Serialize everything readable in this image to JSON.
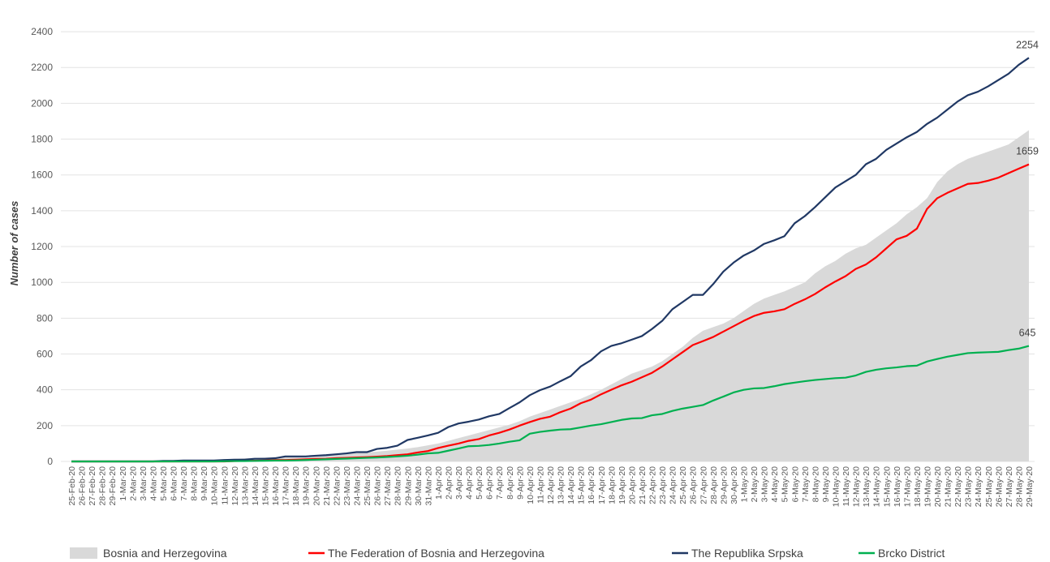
{
  "chart_data": {
    "type": "line",
    "ylabel": "Number of cases",
    "ylim": [
      0,
      2500
    ],
    "yticks": [
      0,
      200,
      400,
      600,
      800,
      1000,
      1200,
      1400,
      1600,
      1800,
      2000,
      2200,
      2400
    ],
    "grid": true,
    "legend": "bottom",
    "categories": [
      "25-Feb-20",
      "26-Feb-20",
      "27-Feb-20",
      "28-Feb-20",
      "29-Feb-20",
      "1-Mar-20",
      "2-Mar-20",
      "3-Mar-20",
      "4-Mar-20",
      "5-Mar-20",
      "6-Mar-20",
      "7-Mar-20",
      "8-Mar-20",
      "9-Mar-20",
      "10-Mar-20",
      "11-Mar-20",
      "12-Mar-20",
      "13-Mar-20",
      "14-Mar-20",
      "15-Mar-20",
      "16-Mar-20",
      "17-Mar-20",
      "18-Mar-20",
      "19-Mar-20",
      "20-Mar-20",
      "21-Mar-20",
      "22-Mar-20",
      "23-Mar-20",
      "24-Mar-20",
      "25-Mar-20",
      "26-Mar-20",
      "27-Mar-20",
      "28-Mar-20",
      "29-Mar-20",
      "30-Mar-20",
      "31-Mar-20",
      "1-Apr-20",
      "2-Apr-20",
      "3-Apr-20",
      "4-Apr-20",
      "5-Apr-20",
      "6-Apr-20",
      "7-Apr-20",
      "8-Apr-20",
      "9-Apr-20",
      "10-Apr-20",
      "11-Apr-20",
      "12-Apr-20",
      "13-Apr-20",
      "14-Apr-20",
      "15-Apr-20",
      "16-Apr-20",
      "17-Apr-20",
      "18-Apr-20",
      "19-Apr-20",
      "20-Apr-20",
      "21-Apr-20",
      "22-Apr-20",
      "23-Apr-20",
      "24-Apr-20",
      "25-Apr-20",
      "26-Apr-20",
      "27-Apr-20",
      "28-Apr-20",
      "29-Apr-20",
      "30-Apr-20",
      "1-May-20",
      "2-May-20",
      "3-May-20",
      "4-May-20",
      "5-May-20",
      "6-May-20",
      "7-May-20",
      "8-May-20",
      "9-May-20",
      "10-May-20",
      "11-May-20",
      "12-May-20",
      "13-May-20",
      "14-May-20",
      "15-May-20",
      "16-May-20",
      "17-May-20",
      "18-May-20",
      "19-May-20",
      "20-May-20",
      "21-May-20",
      "22-May-20",
      "23-May-20",
      "24-May-20",
      "25-May-20",
      "26-May-20",
      "27-May-20",
      "28-May-20",
      "29-May-20"
    ],
    "series": [
      {
        "name": "Bosnia and Herzegovina",
        "kind": "area",
        "color": "#d9d9d9",
        "end_label": false,
        "values": [
          0,
          0,
          0,
          0,
          0,
          0,
          0,
          0,
          0,
          0,
          2,
          3,
          5,
          7,
          9,
          12,
          15,
          18,
          20,
          22,
          24,
          26,
          28,
          30,
          32,
          35,
          38,
          42,
          46,
          50,
          55,
          60,
          66,
          72,
          80,
          90,
          100,
          115,
          130,
          145,
          160,
          175,
          190,
          205,
          225,
          250,
          270,
          290,
          310,
          330,
          350,
          375,
          400,
          430,
          460,
          490,
          510,
          530,
          560,
          600,
          640,
          690,
          730,
          750,
          770,
          800,
          840,
          880,
          910,
          930,
          950,
          975,
          1000,
          1050,
          1090,
          1120,
          1160,
          1190,
          1210,
          1250,
          1290,
          1330,
          1380,
          1420,
          1470,
          1560,
          1620,
          1660,
          1690,
          1710,
          1730,
          1750,
          1770,
          1810,
          1850
        ]
      },
      {
        "name": "The Federation of Bosnia and Herzegovina",
        "kind": "line",
        "color": "#ff0000",
        "end_label": true,
        "values": [
          0,
          0,
          0,
          0,
          0,
          0,
          0,
          0,
          0,
          0,
          0,
          0,
          0,
          0,
          0,
          0,
          2,
          3,
          4,
          6,
          8,
          8,
          10,
          12,
          14,
          15,
          18,
          20,
          22,
          24,
          27,
          30,
          35,
          40,
          50,
          58,
          75,
          88,
          100,
          115,
          125,
          145,
          160,
          178,
          200,
          220,
          238,
          250,
          275,
          295,
          325,
          345,
          375,
          400,
          425,
          445,
          470,
          495,
          530,
          570,
          610,
          650,
          672,
          695,
          725,
          755,
          785,
          812,
          830,
          838,
          850,
          880,
          905,
          935,
          972,
          1005,
          1035,
          1075,
          1100,
          1140,
          1190,
          1240,
          1260,
          1300,
          1410,
          1470,
          1500,
          1525,
          1550,
          1555,
          1568,
          1585,
          1610,
          1635,
          1659
        ]
      },
      {
        "name": "The Republika Srpska",
        "kind": "line",
        "color": "#203864",
        "end_label": true,
        "values": [
          0,
          0,
          0,
          0,
          0,
          0,
          0,
          0,
          0,
          3,
          3,
          5,
          5,
          5,
          5,
          8,
          10,
          10,
          15,
          15,
          18,
          28,
          28,
          28,
          32,
          35,
          40,
          45,
          52,
          52,
          70,
          76,
          88,
          120,
          132,
          145,
          160,
          192,
          212,
          222,
          234,
          252,
          265,
          298,
          330,
          370,
          398,
          418,
          448,
          476,
          530,
          565,
          615,
          645,
          660,
          680,
          700,
          740,
          785,
          850,
          890,
          930,
          930,
          990,
          1060,
          1110,
          1150,
          1178,
          1215,
          1235,
          1258,
          1330,
          1370,
          1420,
          1475,
          1530,
          1565,
          1600,
          1660,
          1690,
          1740,
          1775,
          1810,
          1840,
          1885,
          1920,
          1965,
          2010,
          2045,
          2065,
          2095,
          2130,
          2165,
          2215,
          2254
        ]
      },
      {
        "name": "Brcko District",
        "kind": "line",
        "color": "#00b050",
        "end_label": true,
        "values": [
          0,
          0,
          0,
          0,
          0,
          0,
          0,
          0,
          0,
          0,
          0,
          0,
          0,
          0,
          0,
          1,
          2,
          2,
          3,
          4,
          5,
          5,
          6,
          8,
          10,
          12,
          14,
          16,
          18,
          20,
          22,
          25,
          28,
          32,
          38,
          45,
          48,
          60,
          72,
          85,
          87,
          92,
          100,
          110,
          118,
          155,
          165,
          172,
          178,
          180,
          190,
          200,
          208,
          220,
          232,
          240,
          242,
          258,
          265,
          282,
          295,
          305,
          315,
          340,
          362,
          385,
          400,
          408,
          410,
          420,
          432,
          440,
          448,
          455,
          460,
          465,
          468,
          480,
          500,
          512,
          520,
          525,
          532,
          535,
          558,
          572,
          585,
          595,
          605,
          608,
          610,
          612,
          622,
          630,
          645
        ]
      }
    ]
  }
}
